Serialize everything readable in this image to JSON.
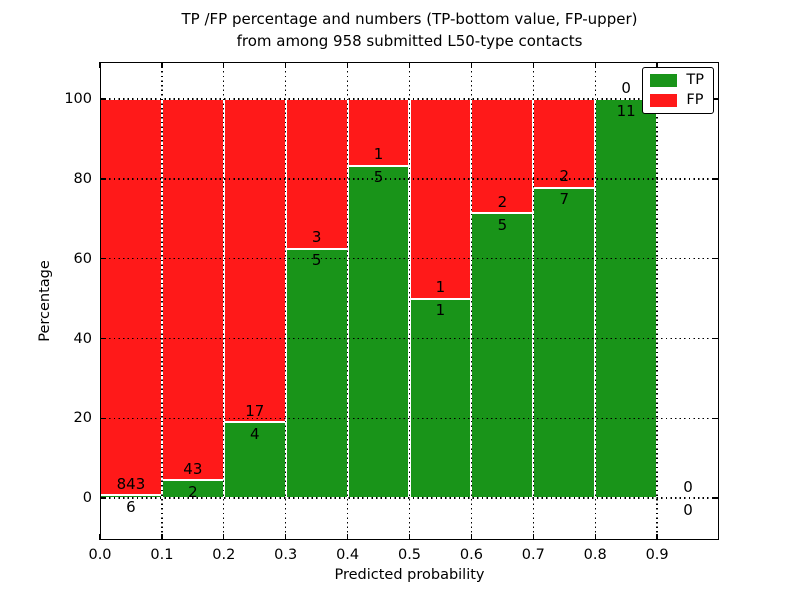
{
  "chart_data": {
    "type": "bar",
    "stacked": true,
    "title_lines": [
      "TP /FP percentage and numbers (TP-bottom value, FP-upper)",
      "from among 958 submitted L50-type contacts"
    ],
    "xlabel": "Predicted probability",
    "ylabel": "Percentage",
    "xlim": [
      0.0,
      1.0
    ],
    "ylim": [
      -10.5,
      109.3
    ],
    "xticks": [
      {
        "value": 0.0,
        "label": "0.0"
      },
      {
        "value": 0.1,
        "label": "0.1"
      },
      {
        "value": 0.2,
        "label": "0.2"
      },
      {
        "value": 0.3,
        "label": "0.3"
      },
      {
        "value": 0.4,
        "label": "0.4"
      },
      {
        "value": 0.5,
        "label": "0.5"
      },
      {
        "value": 0.6,
        "label": "0.6"
      },
      {
        "value": 0.7,
        "label": "0.7"
      },
      {
        "value": 0.8,
        "label": "0.8"
      },
      {
        "value": 0.9,
        "label": "0.9"
      }
    ],
    "yticks": [
      {
        "value": 0,
        "label": "0"
      },
      {
        "value": 20,
        "label": "20"
      },
      {
        "value": 40,
        "label": "40"
      },
      {
        "value": 60,
        "label": "60"
      },
      {
        "value": 80,
        "label": "80"
      },
      {
        "value": 100,
        "label": "100"
      }
    ],
    "grid": true,
    "grid_style": "dotted",
    "legend": {
      "position": "upper-right",
      "entries": [
        {
          "label": "TP",
          "color": "#199419"
        },
        {
          "label": "FP",
          "color": "#ff1919"
        }
      ]
    },
    "colors": {
      "tp": "#199419",
      "fp": "#ff1919",
      "bar_edge": "#ffffff",
      "grid": "#000000"
    },
    "bins": [
      {
        "x_start": 0.0,
        "x_end": 0.1,
        "tp_count": 6,
        "fp_count": 843,
        "tp_pct": 0.71,
        "fp_pct": 99.29,
        "has_bar": true
      },
      {
        "x_start": 0.1,
        "x_end": 0.2,
        "tp_count": 2,
        "fp_count": 43,
        "tp_pct": 4.44,
        "fp_pct": 95.56,
        "has_bar": true
      },
      {
        "x_start": 0.2,
        "x_end": 0.3,
        "tp_count": 4,
        "fp_count": 17,
        "tp_pct": 19.05,
        "fp_pct": 80.95,
        "has_bar": true
      },
      {
        "x_start": 0.3,
        "x_end": 0.4,
        "tp_count": 5,
        "fp_count": 3,
        "tp_pct": 62.5,
        "fp_pct": 37.5,
        "has_bar": true
      },
      {
        "x_start": 0.4,
        "x_end": 0.5,
        "tp_count": 5,
        "fp_count": 1,
        "tp_pct": 83.33,
        "fp_pct": 16.67,
        "has_bar": true
      },
      {
        "x_start": 0.5,
        "x_end": 0.6,
        "tp_count": 1,
        "fp_count": 1,
        "tp_pct": 50.0,
        "fp_pct": 50.0,
        "has_bar": true
      },
      {
        "x_start": 0.6,
        "x_end": 0.7,
        "tp_count": 5,
        "fp_count": 2,
        "tp_pct": 71.43,
        "fp_pct": 28.57,
        "has_bar": true
      },
      {
        "x_start": 0.7,
        "x_end": 0.8,
        "tp_count": 7,
        "fp_count": 2,
        "tp_pct": 77.78,
        "fp_pct": 22.22,
        "has_bar": true
      },
      {
        "x_start": 0.8,
        "x_end": 0.9,
        "tp_count": 11,
        "fp_count": 0,
        "tp_pct": 100.0,
        "fp_pct": 0.0,
        "has_bar": true
      },
      {
        "x_start": 0.9,
        "x_end": 1.0,
        "tp_count": 0,
        "fp_count": 0,
        "tp_pct": 0.0,
        "fp_pct": 0.0,
        "has_bar": false
      }
    ]
  }
}
